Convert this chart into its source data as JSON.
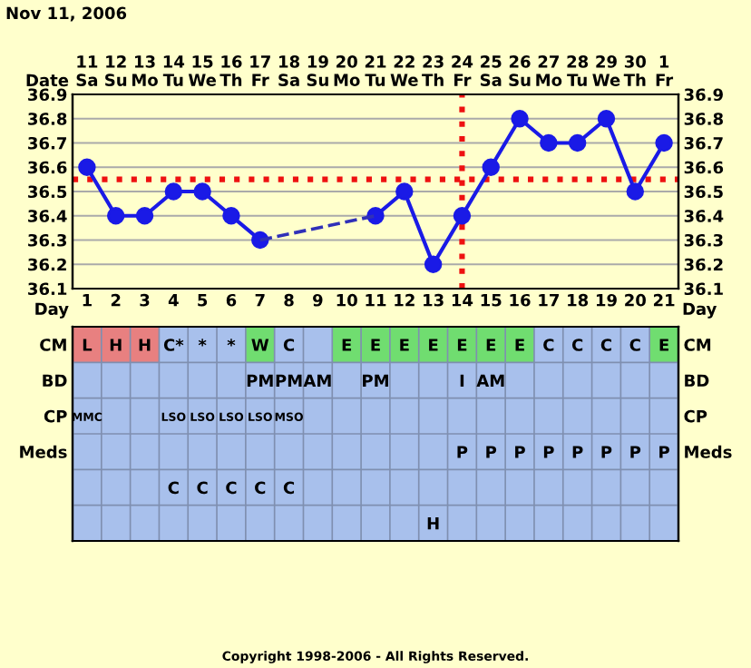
{
  "chart_data": [
    {
      "type": "line",
      "title": "Nov 11, 2006",
      "xlabel": "Day",
      "x2label": "Date",
      "categories": [
        "1",
        "2",
        "3",
        "4",
        "5",
        "6",
        "7",
        "8",
        "9",
        "10",
        "11",
        "12",
        "13",
        "14",
        "15",
        "16",
        "17",
        "18",
        "19",
        "20",
        "21"
      ],
      "series": [
        {
          "type": "line",
          "color": "#1a1ae6",
          "marker": "circle",
          "line_style": "solid",
          "values": [
            36.6,
            36.4,
            36.4,
            36.5,
            36.5,
            36.4,
            36.3,
            null,
            null,
            null,
            36.4,
            36.5,
            36.2,
            36.4,
            36.6,
            36.8,
            36.7,
            36.7,
            36.8,
            36.5,
            36.7
          ]
        },
        {
          "type": "line",
          "color": "#3030b8",
          "marker": "none",
          "line_style": "dashed",
          "x": [
            "7",
            "11"
          ],
          "values": [
            36.3,
            36.4
          ]
        }
      ],
      "ylim": [
        36.1,
        36.9
      ],
      "yticks": [
        36.1,
        36.2,
        36.3,
        36.4,
        36.5,
        36.6,
        36.7,
        36.8,
        36.9
      ],
      "y2lim": [
        36.1,
        36.9
      ],
      "y2ticks": [
        36.1,
        36.2,
        36.3,
        36.4,
        36.5,
        36.6,
        36.7,
        36.8,
        36.9
      ],
      "annotations": [
        "11\nSa",
        "12\nSu",
        "13\nMo",
        "14\nTu",
        "15\nWe",
        "16\nTh",
        "17\nFr",
        "18\nSa",
        "19\nSu",
        "20\nMo",
        "21\nTu",
        "22\nWe",
        "23\nTh",
        "24\nFr",
        "25\nSa",
        "26\nSu",
        "27\nMo",
        "28\nTu",
        "29\nWe",
        "30\nTh",
        "1\nFr"
      ],
      "ref_lines": [
        {
          "axis": "y",
          "value": 36.55,
          "color": "#ee1111",
          "line_style": "dotted"
        },
        {
          "axis": "x",
          "value": "14",
          "color": "#ee1111",
          "line_style": "dotted"
        }
      ],
      "grid": true,
      "legend": false
    },
    {
      "type": "heatmap",
      "color": "#a8c0ec",
      "categories": [
        null,
        null,
        null,
        null,
        null,
        null,
        null,
        null,
        null,
        null,
        null,
        null,
        null,
        null,
        null,
        null,
        null,
        null,
        null,
        null,
        null
      ],
      "y_categories": [
        "CM",
        "BD",
        "CP",
        "Meds",
        null,
        null
      ],
      "y2_categories": [
        "CM",
        "BD",
        "CP",
        "Meds",
        null,
        null
      ],
      "cells": [
        [
          "L",
          "H",
          "H",
          "C*",
          "*",
          "*",
          "W",
          "C",
          null,
          "E",
          "E",
          "E",
          "E",
          "E",
          "E",
          "E",
          "C",
          "C",
          "C",
          "C",
          "E"
        ],
        [
          null,
          null,
          null,
          null,
          null,
          null,
          "PM",
          "PM",
          "AM",
          null,
          "PM",
          null,
          null,
          "I",
          "AM",
          null,
          null,
          null,
          null,
          null,
          null
        ],
        [
          "MMC",
          null,
          null,
          "LSO",
          "LSO",
          "LSO",
          "LSO",
          "MSO",
          null,
          null,
          null,
          null,
          null,
          null,
          null,
          null,
          null,
          null,
          null,
          null,
          null
        ],
        [
          null,
          null,
          null,
          null,
          null,
          null,
          null,
          null,
          null,
          null,
          null,
          null,
          null,
          "P",
          "P",
          "P",
          "P",
          "P",
          "P",
          "P",
          "P"
        ],
        [
          null,
          null,
          null,
          "C",
          "C",
          "C",
          "C",
          "C",
          null,
          null,
          null,
          null,
          null,
          null,
          null,
          null,
          null,
          null,
          null,
          null,
          null
        ],
        [
          null,
          null,
          null,
          null,
          null,
          null,
          null,
          null,
          null,
          null,
          null,
          null,
          "H",
          null,
          null,
          null,
          null,
          null,
          null,
          null,
          null
        ]
      ],
      "colors": [
        [
          "#e88080",
          "#e88080",
          "#e88080",
          null,
          null,
          null,
          "#70dd70",
          null,
          null,
          "#70dd70",
          "#70dd70",
          "#70dd70",
          "#70dd70",
          "#70dd70",
          "#70dd70",
          "#70dd70",
          null,
          null,
          null,
          null,
          "#70dd70"
        ],
        [
          null,
          null,
          null,
          null,
          null,
          null,
          null,
          null,
          null,
          null,
          null,
          null,
          null,
          null,
          null,
          null,
          null,
          null,
          null,
          null,
          null
        ],
        [
          null,
          null,
          null,
          null,
          null,
          null,
          null,
          null,
          null,
          null,
          null,
          null,
          null,
          null,
          null,
          null,
          null,
          null,
          null,
          null,
          null
        ],
        [
          null,
          null,
          null,
          null,
          null,
          null,
          null,
          null,
          null,
          null,
          null,
          null,
          null,
          null,
          null,
          null,
          null,
          null,
          null,
          null,
          null
        ],
        [
          null,
          null,
          null,
          null,
          null,
          null,
          null,
          null,
          null,
          null,
          null,
          null,
          null,
          null,
          null,
          null,
          null,
          null,
          null,
          null,
          null
        ],
        [
          null,
          null,
          null,
          null,
          null,
          null,
          null,
          null,
          null,
          null,
          null,
          null,
          null,
          null,
          null,
          null,
          null,
          null,
          null,
          null,
          null
        ]
      ],
      "annotations": [
        "Copyright 1998-2006 - All Rights Reserved."
      ]
    }
  ]
}
